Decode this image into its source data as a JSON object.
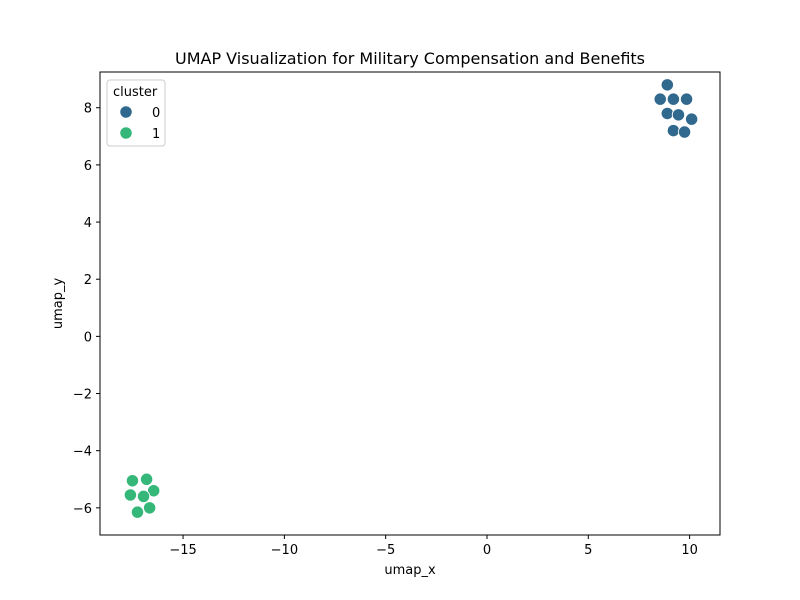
{
  "chart_data": {
    "type": "scatter",
    "title": "UMAP Visualization for Military Compensation and Benefits",
    "xlabel": "umap_x",
    "ylabel": "umap_y",
    "xlim": [
      -19.1,
      11.5
    ],
    "ylim": [
      -6.95,
      9.25
    ],
    "xticks": [
      -15,
      -10,
      -5,
      0,
      5,
      10
    ],
    "yticks": [
      -6,
      -4,
      -2,
      0,
      2,
      4,
      6,
      8
    ],
    "xtick_labels": [
      "−15",
      "−10",
      "−5",
      "0",
      "5",
      "10"
    ],
    "ytick_labels": [
      "−6",
      "−4",
      "−2",
      "0",
      "2",
      "4",
      "6",
      "8"
    ],
    "grid": false,
    "legend": {
      "title": "cluster",
      "placement": "top-left",
      "entries": [
        {
          "label": "0",
          "color": "#31688e"
        },
        {
          "label": "1",
          "color": "#35b779"
        }
      ]
    },
    "series": [
      {
        "name": "0",
        "color": "#31688e",
        "points": [
          {
            "x": 8.9,
            "y": 8.8
          },
          {
            "x": 8.55,
            "y": 8.3
          },
          {
            "x": 9.2,
            "y": 8.3
          },
          {
            "x": 9.85,
            "y": 8.3
          },
          {
            "x": 8.9,
            "y": 7.8
          },
          {
            "x": 9.45,
            "y": 7.75
          },
          {
            "x": 10.1,
            "y": 7.6
          },
          {
            "x": 9.2,
            "y": 7.2
          },
          {
            "x": 9.75,
            "y": 7.15
          }
        ]
      },
      {
        "name": "1",
        "color": "#35b779",
        "points": [
          {
            "x": -17.5,
            "y": -5.05
          },
          {
            "x": -16.8,
            "y": -5.0
          },
          {
            "x": -16.45,
            "y": -5.4
          },
          {
            "x": -17.6,
            "y": -5.55
          },
          {
            "x": -16.95,
            "y": -5.6
          },
          {
            "x": -16.65,
            "y": -6.0
          },
          {
            "x": -17.25,
            "y": -6.15
          }
        ]
      }
    ]
  }
}
